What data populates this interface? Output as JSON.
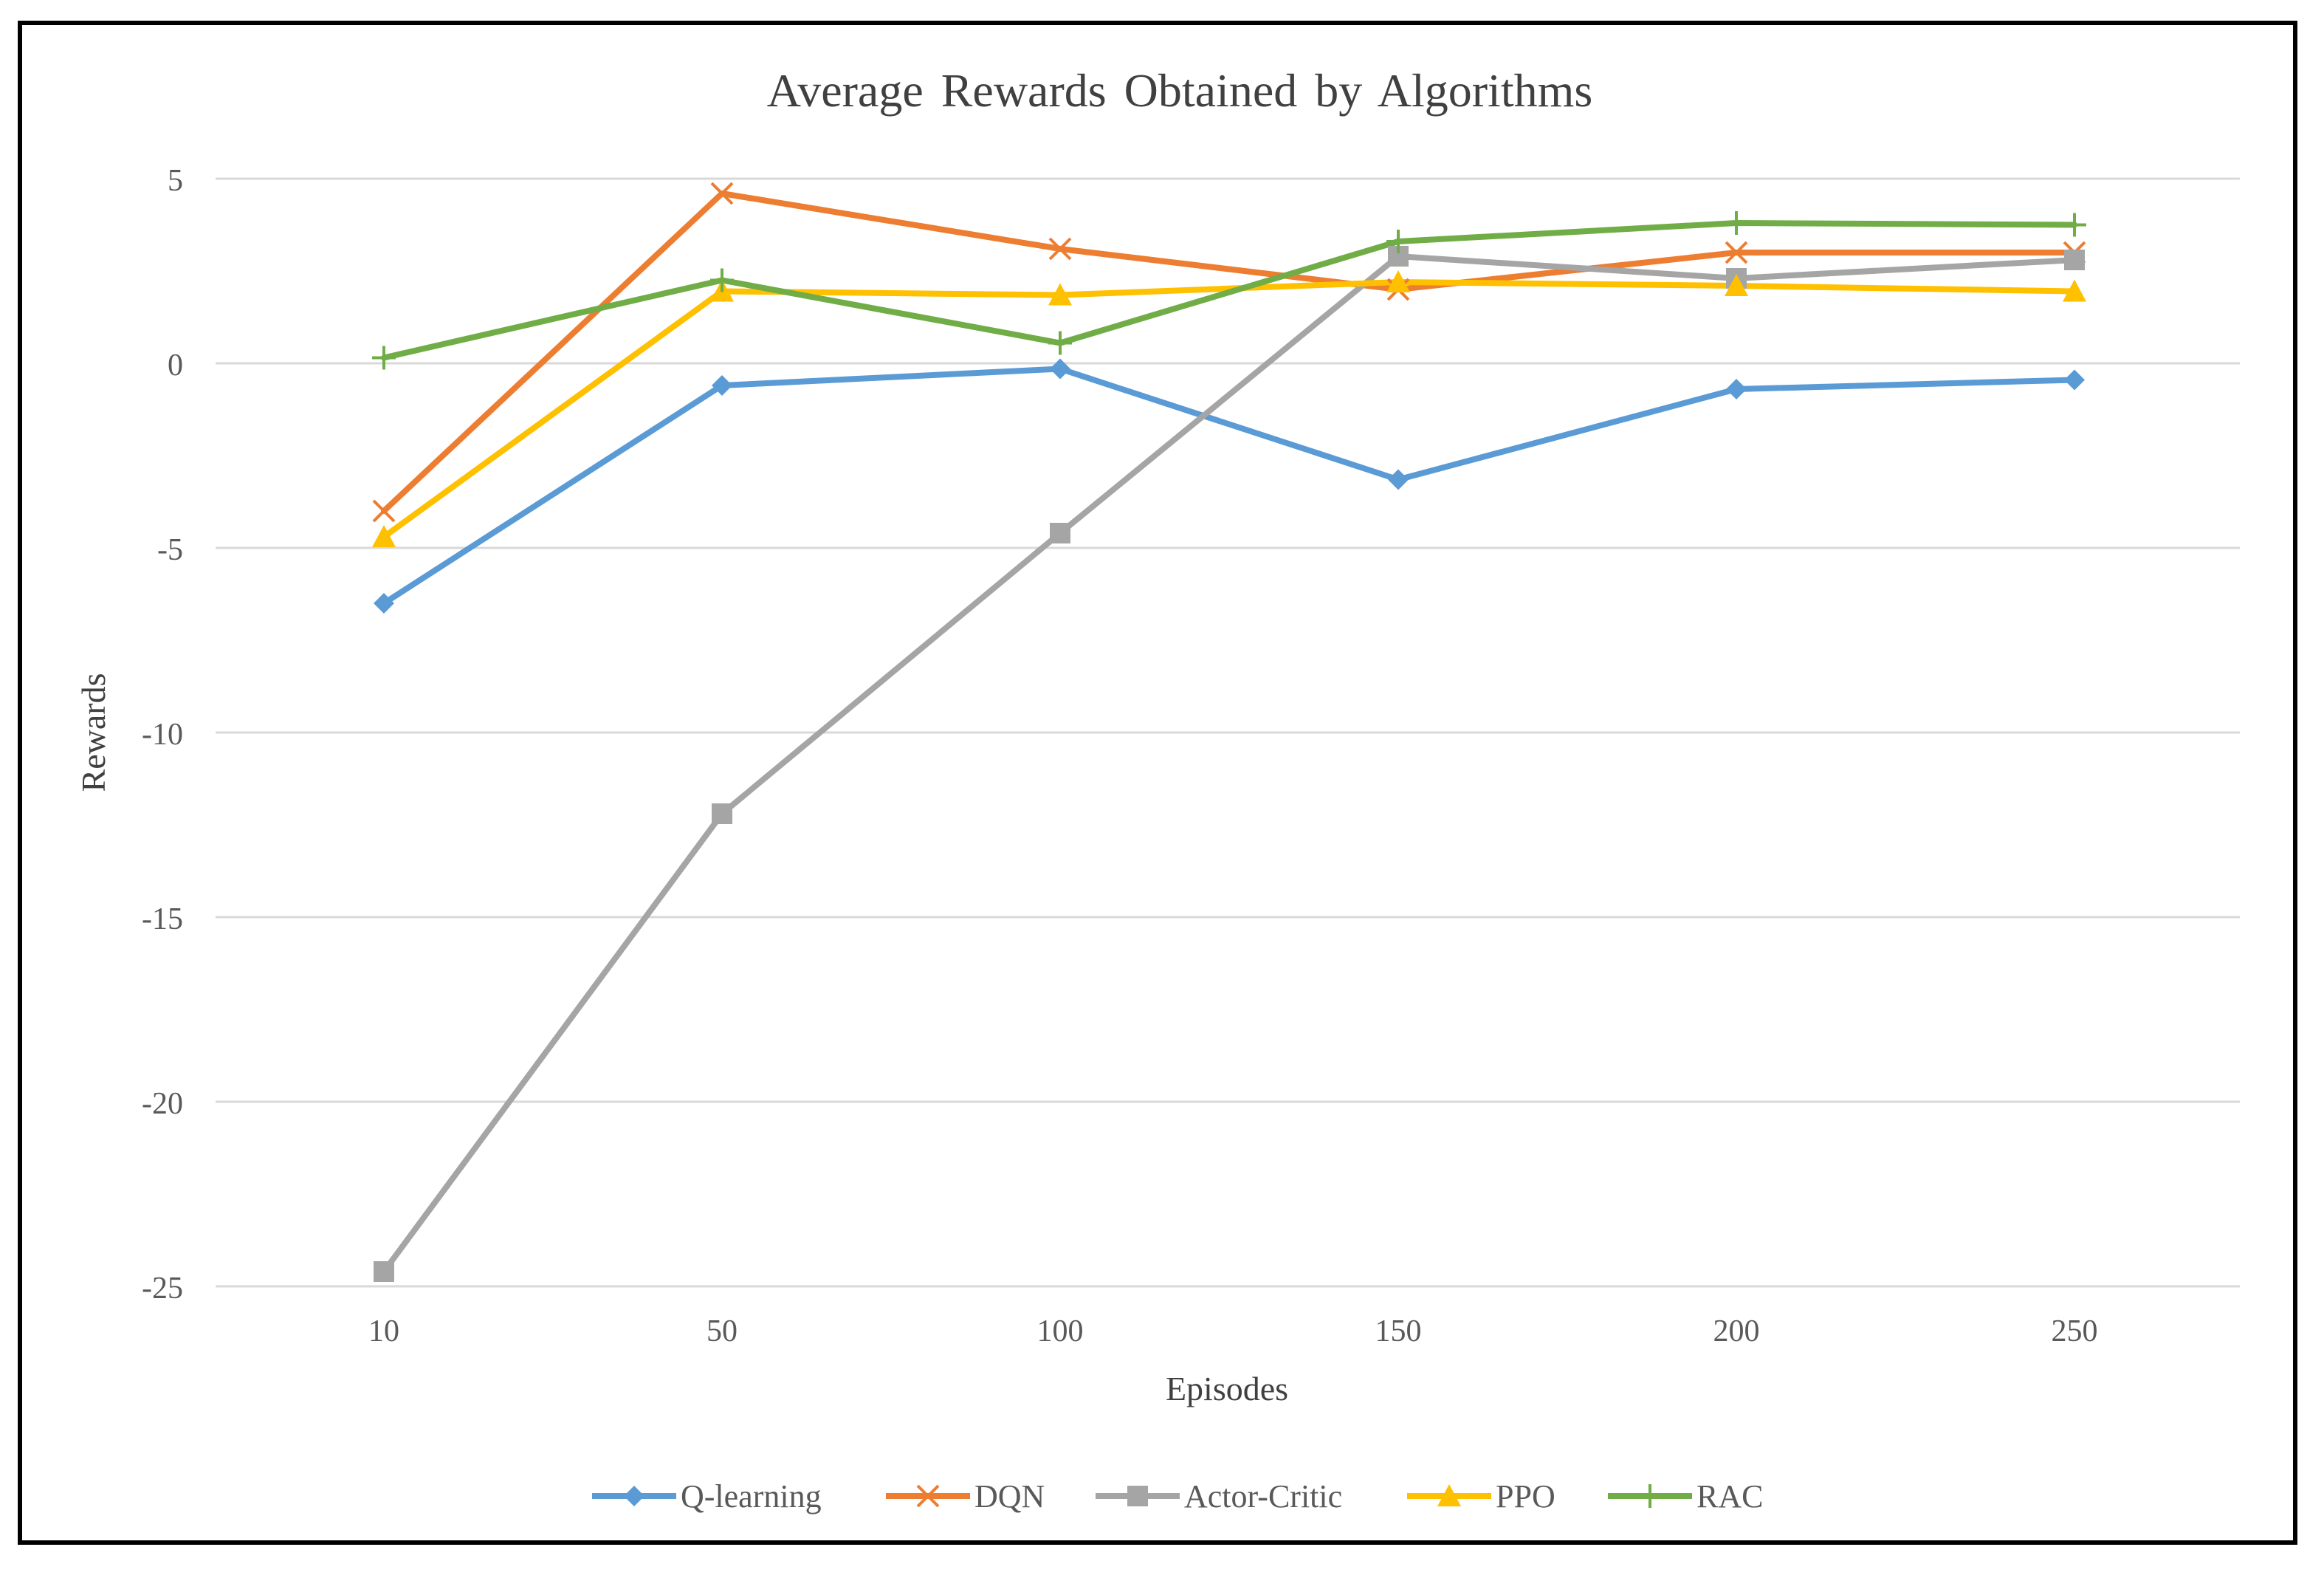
{
  "chart_data": {
    "type": "line",
    "title": "Average Rewards Obtained by Algorithms",
    "xlabel": "Episodes",
    "ylabel": "Rewards",
    "categories": [
      "10",
      "50",
      "100",
      "150",
      "200",
      "250"
    ],
    "ylim": [
      -25,
      5
    ],
    "yticks": [
      5,
      0,
      -5,
      -10,
      -15,
      -20,
      -25
    ],
    "grid": true,
    "legend_position": "bottom",
    "series": [
      {
        "name": "Q-learning",
        "color": "#5B9BD5",
        "marker": "diamond",
        "values": [
          -6.5,
          -0.6,
          -0.15,
          -3.15,
          -0.7,
          -0.45
        ]
      },
      {
        "name": "DQN",
        "color": "#ED7D31",
        "marker": "x",
        "values": [
          -4.0,
          4.6,
          3.1,
          2.0,
          3.0,
          3.0
        ]
      },
      {
        "name": "Actor-Critic",
        "color": "#A5A5A5",
        "marker": "square",
        "values": [
          -24.6,
          -12.2,
          -4.6,
          2.9,
          2.3,
          2.8
        ]
      },
      {
        "name": "PPO",
        "color": "#FFC000",
        "marker": "triangle",
        "values": [
          -4.7,
          1.95,
          1.85,
          2.2,
          2.1,
          1.95
        ]
      },
      {
        "name": "RAC",
        "color": "#70AD47",
        "marker": "plus",
        "values": [
          0.15,
          2.25,
          0.55,
          3.3,
          3.8,
          3.75
        ]
      }
    ]
  }
}
